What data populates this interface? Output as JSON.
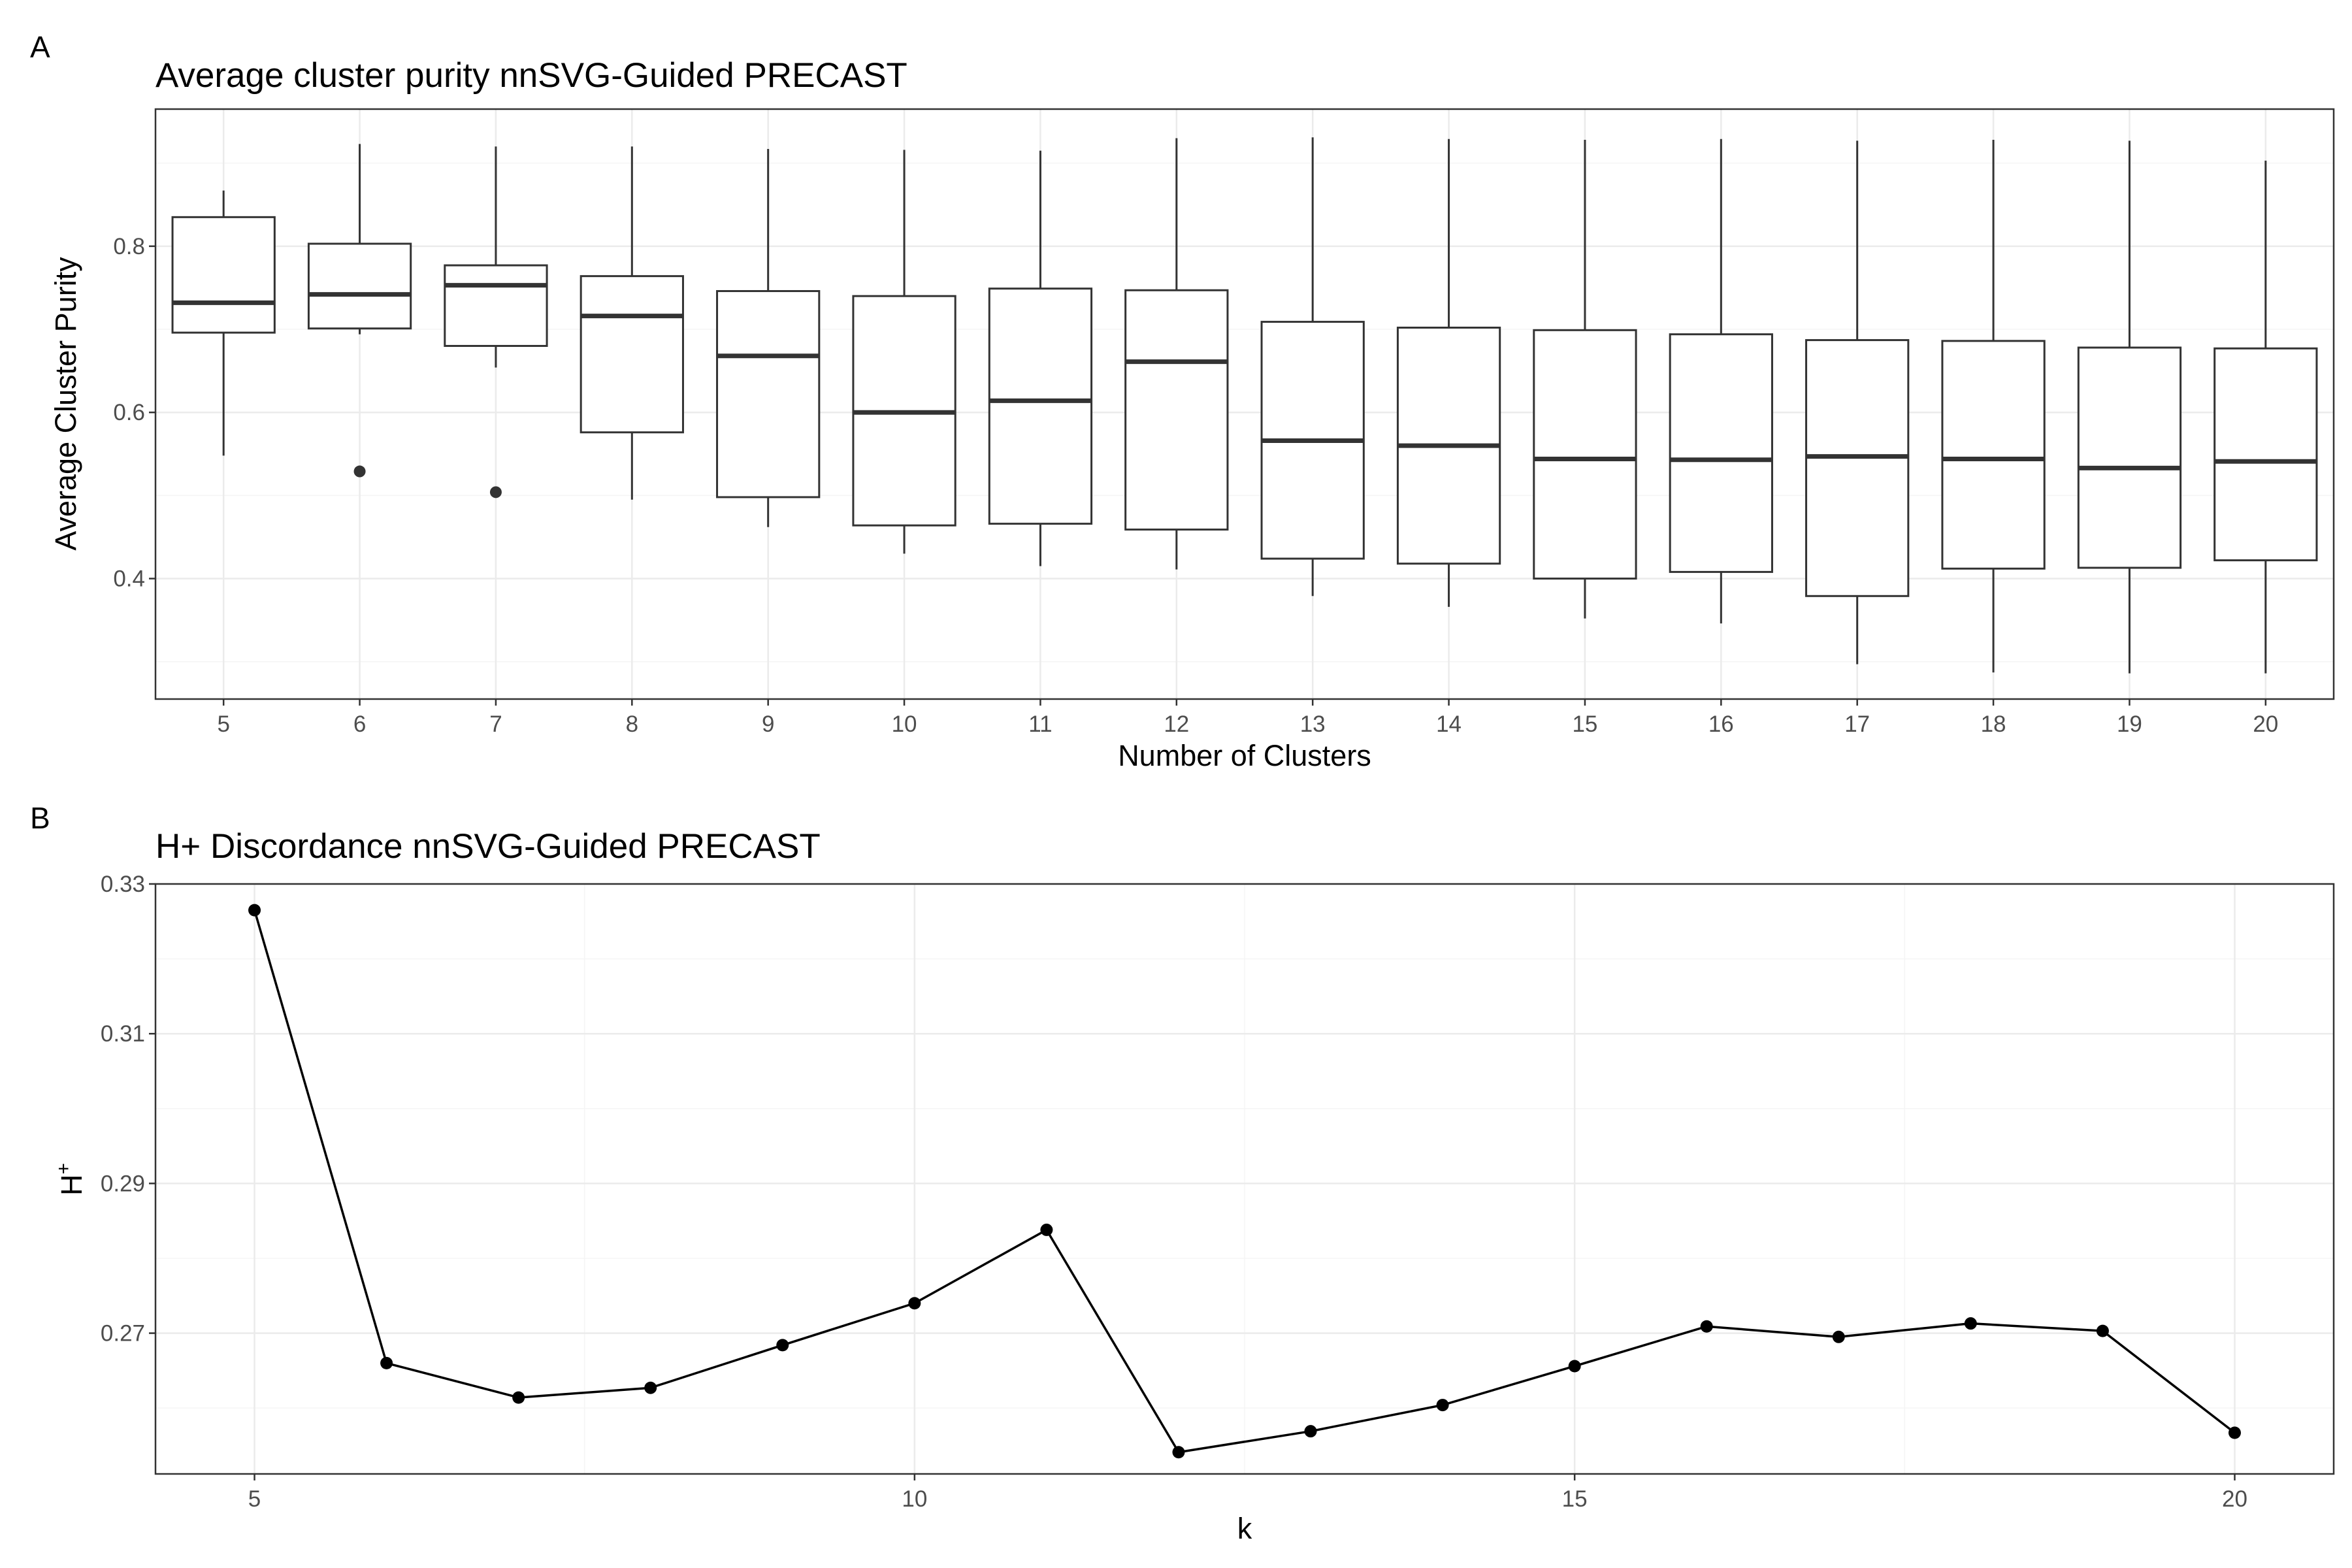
{
  "panel_a": {
    "tag": "A",
    "title": "Average cluster purity nnSVG-Guided PRECAST",
    "xlabel": "Number of Clusters",
    "ylabel": "Average Cluster Purity"
  },
  "panel_b": {
    "tag": "B",
    "title": "H+ Discordance nnSVG-Guided PRECAST",
    "xlabel": "k",
    "ylabel": "H+"
  },
  "colors": {
    "line": "#000000",
    "box": "#333333",
    "grid_major": "#ebebeb",
    "grid_minor": "#f5f5f5",
    "panel_border": "#333333"
  },
  "chart_data": [
    {
      "type": "box",
      "title": "Average cluster purity nnSVG-Guided PRECAST",
      "xlabel": "Number of Clusters",
      "ylabel": "Average Cluster Purity",
      "ylim": [
        0.255,
        0.965
      ],
      "yticks": [
        0.4,
        0.6,
        0.8
      ],
      "grid": true,
      "categories": [
        "5",
        "6",
        "7",
        "8",
        "9",
        "10",
        "11",
        "12",
        "13",
        "14",
        "15",
        "16",
        "17",
        "18",
        "19",
        "20"
      ],
      "boxes": [
        {
          "x": "5",
          "lower": 0.548,
          "q1": 0.696,
          "median": 0.732,
          "q3": 0.835,
          "upper": 0.867,
          "outliers": []
        },
        {
          "x": "6",
          "lower": 0.694,
          "q1": 0.701,
          "median": 0.742,
          "q3": 0.803,
          "upper": 0.923,
          "outliers": [
            0.529
          ]
        },
        {
          "x": "7",
          "lower": 0.654,
          "q1": 0.68,
          "median": 0.753,
          "q3": 0.777,
          "upper": 0.92,
          "outliers": [
            0.504
          ]
        },
        {
          "x": "8",
          "lower": 0.495,
          "q1": 0.576,
          "median": 0.716,
          "q3": 0.764,
          "upper": 0.92,
          "outliers": []
        },
        {
          "x": "9",
          "lower": 0.462,
          "q1": 0.498,
          "median": 0.668,
          "q3": 0.746,
          "upper": 0.917,
          "outliers": []
        },
        {
          "x": "10",
          "lower": 0.43,
          "q1": 0.464,
          "median": 0.6,
          "q3": 0.74,
          "upper": 0.916,
          "outliers": []
        },
        {
          "x": "11",
          "lower": 0.415,
          "q1": 0.466,
          "median": 0.614,
          "q3": 0.749,
          "upper": 0.915,
          "outliers": []
        },
        {
          "x": "12",
          "lower": 0.411,
          "q1": 0.459,
          "median": 0.661,
          "q3": 0.747,
          "upper": 0.93,
          "outliers": []
        },
        {
          "x": "13",
          "lower": 0.379,
          "q1": 0.424,
          "median": 0.566,
          "q3": 0.709,
          "upper": 0.931,
          "outliers": []
        },
        {
          "x": "14",
          "lower": 0.366,
          "q1": 0.418,
          "median": 0.56,
          "q3": 0.702,
          "upper": 0.929,
          "outliers": []
        },
        {
          "x": "15",
          "lower": 0.352,
          "q1": 0.4,
          "median": 0.544,
          "q3": 0.699,
          "upper": 0.928,
          "outliers": []
        },
        {
          "x": "16",
          "lower": 0.346,
          "q1": 0.408,
          "median": 0.543,
          "q3": 0.694,
          "upper": 0.929,
          "outliers": []
        },
        {
          "x": "17",
          "lower": 0.297,
          "q1": 0.379,
          "median": 0.547,
          "q3": 0.687,
          "upper": 0.927,
          "outliers": []
        },
        {
          "x": "18",
          "lower": 0.287,
          "q1": 0.412,
          "median": 0.544,
          "q3": 0.686,
          "upper": 0.928,
          "outliers": []
        },
        {
          "x": "19",
          "lower": 0.286,
          "q1": 0.413,
          "median": 0.533,
          "q3": 0.678,
          "upper": 0.927,
          "outliers": []
        },
        {
          "x": "20",
          "lower": 0.286,
          "q1": 0.422,
          "median": 0.541,
          "q3": 0.677,
          "upper": 0.903,
          "outliers": []
        }
      ]
    },
    {
      "type": "line",
      "title": "H+ Discordance nnSVG-Guided PRECAST",
      "xlabel": "k",
      "ylabel": "H+",
      "xlim": [
        4.25,
        20.75
      ],
      "ylim": [
        0.2512,
        0.33
      ],
      "xticks": [
        5,
        10,
        15,
        20
      ],
      "yticks": [
        0.27,
        0.29,
        0.31,
        0.33
      ],
      "grid": true,
      "x": [
        5,
        6,
        7,
        8,
        9,
        10,
        11,
        12,
        13,
        14,
        15,
        16,
        17,
        18,
        19,
        20
      ],
      "y": [
        0.3265,
        0.266,
        0.2614,
        0.2627,
        0.2684,
        0.274,
        0.2838,
        0.2541,
        0.2569,
        0.2604,
        0.2656,
        0.2709,
        0.2695,
        0.2713,
        0.2703,
        0.2567
      ]
    }
  ]
}
